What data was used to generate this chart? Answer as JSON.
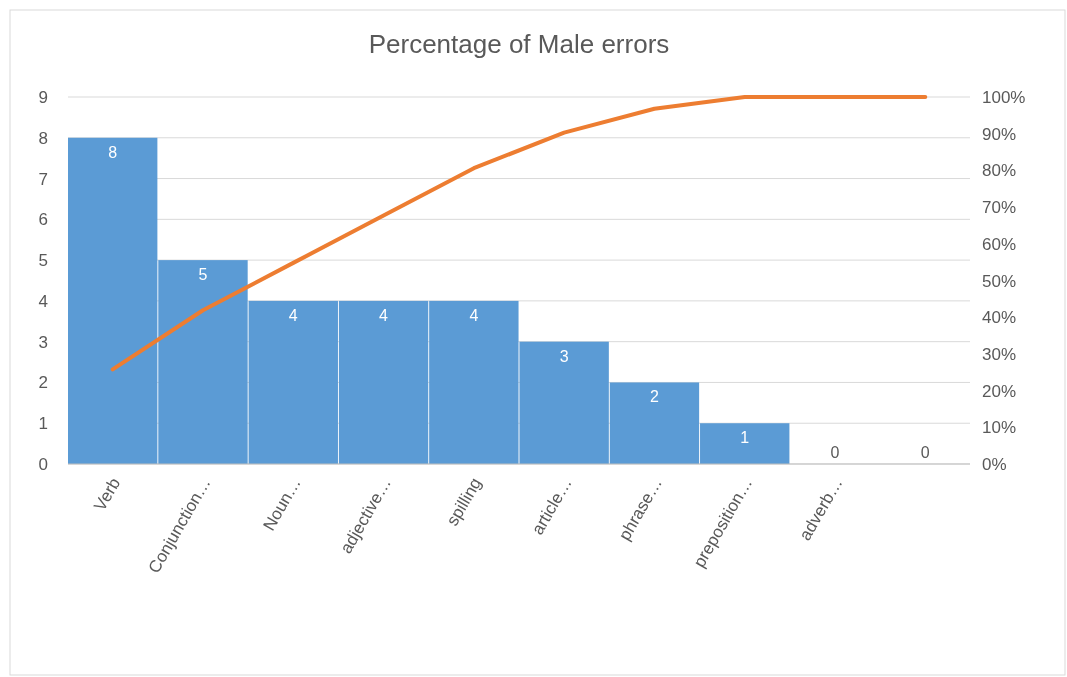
{
  "chart_data": {
    "type": "bar",
    "title": "Percentage of Male errors",
    "categories": [
      "Verb",
      "Conjunction…",
      "Noun…",
      "adjective…",
      "spilling",
      "article…",
      "phrase…",
      "preposition…",
      "adverb…",
      null
    ],
    "series": [
      {
        "color": "#5b9bd5",
        "values": [
          8,
          5,
          4,
          4,
          4,
          3,
          2,
          1,
          0,
          0
        ],
        "value_labels": [
          "8",
          "5",
          "4",
          "4",
          "4",
          "3",
          "2",
          "1",
          "0",
          "0"
        ]
      },
      {
        "type": "line",
        "axis": "y2",
        "color": "#ed7d31",
        "values": [
          25.8,
          41.9,
          54.8,
          67.7,
          80.6,
          90.3,
          96.8,
          100,
          100,
          100
        ]
      }
    ],
    "ylim": [
      0,
      9
    ],
    "yticks": [
      0,
      1,
      2,
      3,
      4,
      5,
      6,
      7,
      8,
      9
    ],
    "y2lim": [
      0,
      100
    ],
    "y2ticks": [
      {
        "value": 0,
        "label": "0%"
      },
      {
        "value": 10,
        "label": "10%"
      },
      {
        "value": 20,
        "label": "20%"
      },
      {
        "value": 30,
        "label": "30%"
      },
      {
        "value": 40,
        "label": "40%"
      },
      {
        "value": 50,
        "label": "50%"
      },
      {
        "value": 60,
        "label": "60%"
      },
      {
        "value": 70,
        "label": "70%"
      },
      {
        "value": 80,
        "label": "80%"
      },
      {
        "value": 90,
        "label": "90%"
      },
      {
        "value": 100,
        "label": "100%"
      }
    ],
    "grid": "y"
  }
}
